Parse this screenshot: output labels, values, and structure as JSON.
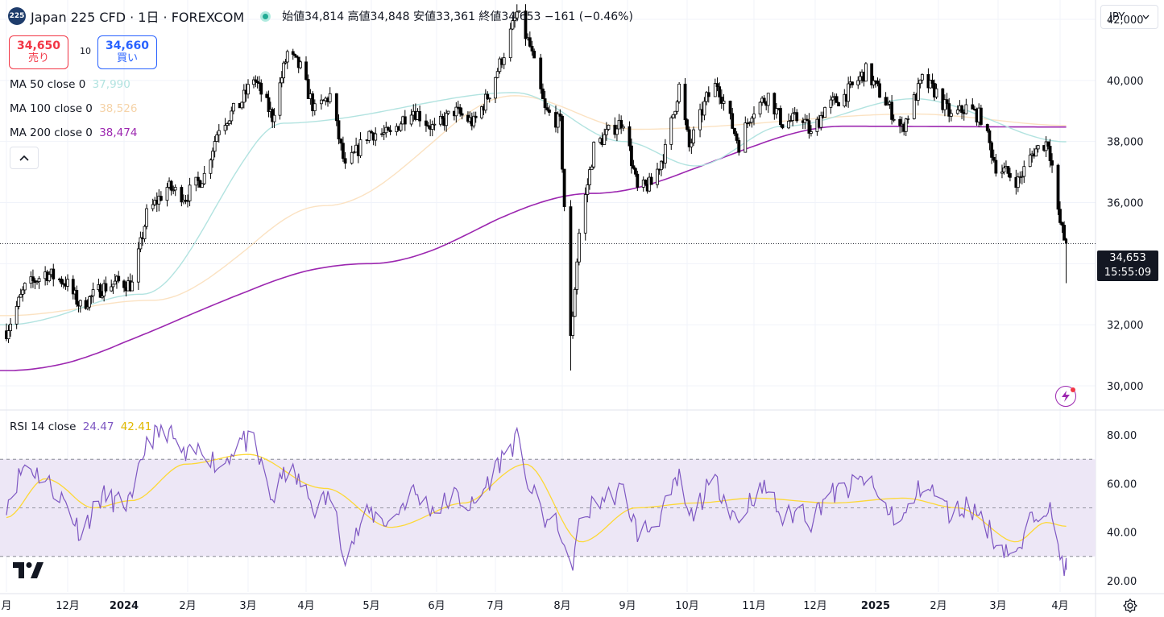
{
  "header": {
    "symbol_badge": "225",
    "title": "Japan 225 CFD · 1日 · FOREXCOM",
    "ohlc": "始値34,814 高値34,848 安値33,361 終値34,653 −161 (−0.46%)"
  },
  "trade": {
    "sell_price": "34,650",
    "sell_label": "売り",
    "spread": "10",
    "buy_price": "34,660",
    "buy_label": "買い"
  },
  "legend": {
    "ma50_label": "MA 50 close 0",
    "ma50_value": "37,990",
    "ma100_label": "MA 100 close 0",
    "ma100_value": "38,526",
    "ma200_label": "MA 200 close 0",
    "ma200_value": "38,474",
    "collapse_icon": "chevron-up-icon"
  },
  "rsi_legend": {
    "label": "RSI 14 close",
    "rsi_value": "24.47",
    "ma_value": "42.41"
  },
  "currency": "JPY",
  "last_price": {
    "price": "34,653",
    "countdown": "15:55:09"
  },
  "colors": {
    "candle_up": "#ffffff",
    "candle_down": "#000000",
    "ma50": "#b2e3e0",
    "ma100": "#fbe2c2",
    "ma200": "#9c27b0",
    "rsi": "#7e57c2",
    "rsi_ma": "#fdd835",
    "rsi_band": "#ede7f6"
  },
  "chart_data": [
    {
      "type": "candlestick",
      "title": "Japan 225 CFD · 1日 · FOREXCOM",
      "y_ticks": [
        "42,000",
        "40,000",
        "38,000",
        "36,000",
        "34,000",
        "32,000",
        "30,000"
      ],
      "ylim": [
        29300,
        42700
      ],
      "x_ticks": [
        "月",
        "12月",
        "2024",
        "2月",
        "3月",
        "4月",
        "5月",
        "6月",
        "7月",
        "8月",
        "9月",
        "10月",
        "11月",
        "12月",
        "2025",
        "2月",
        "3月",
        "4月"
      ],
      "close_path": [
        [
          "2023-11-01",
          31800
        ],
        [
          "2023-11-10",
          33200
        ],
        [
          "2023-11-20",
          33700
        ],
        [
          "2023-11-30",
          33400
        ],
        [
          "2023-12-08",
          32600
        ],
        [
          "2023-12-20",
          33200
        ],
        [
          "2023-12-29",
          33400
        ],
        [
          "2024-01-05",
          33300
        ],
        [
          "2024-01-12",
          35600
        ],
        [
          "2024-01-22",
          36500
        ],
        [
          "2024-01-31",
          36200
        ],
        [
          "2024-02-09",
          36900
        ],
        [
          "2024-02-16",
          38500
        ],
        [
          "2024-02-26",
          39200
        ],
        [
          "2024-03-04",
          40100
        ],
        [
          "2024-03-14",
          38800
        ],
        [
          "2024-03-22",
          40900
        ],
        [
          "2024-03-29",
          40400
        ],
        [
          "2024-04-05",
          39000
        ],
        [
          "2024-04-12",
          39500
        ],
        [
          "2024-04-19",
          37100
        ],
        [
          "2024-04-30",
          38300
        ],
        [
          "2024-05-10",
          38200
        ],
        [
          "2024-05-20",
          39100
        ],
        [
          "2024-05-31",
          38400
        ],
        [
          "2024-06-10",
          39000
        ],
        [
          "2024-06-20",
          38600
        ],
        [
          "2024-06-28",
          39600
        ],
        [
          "2024-07-05",
          40900
        ],
        [
          "2024-07-11",
          42200
        ],
        [
          "2024-07-17",
          41100
        ],
        [
          "2024-07-24",
          39000
        ],
        [
          "2024-07-31",
          38600
        ],
        [
          "2024-08-02",
          35900
        ],
        [
          "2024-08-05",
          31500
        ],
        [
          "2024-08-09",
          35000
        ],
        [
          "2024-08-16",
          37800
        ],
        [
          "2024-08-23",
          38300
        ],
        [
          "2024-08-30",
          38700
        ],
        [
          "2024-09-06",
          36400
        ],
        [
          "2024-09-13",
          36600
        ],
        [
          "2024-09-20",
          37700
        ],
        [
          "2024-09-27",
          39800
        ],
        [
          "2024-10-02",
          37800
        ],
        [
          "2024-10-10",
          39400
        ],
        [
          "2024-10-15",
          39900
        ],
        [
          "2024-10-25",
          37900
        ],
        [
          "2024-10-31",
          39000
        ],
        [
          "2024-11-08",
          39500
        ],
        [
          "2024-11-15",
          38600
        ],
        [
          "2024-11-25",
          38800
        ],
        [
          "2024-11-29",
          38200
        ],
        [
          "2024-12-06",
          39100
        ],
        [
          "2024-12-16",
          39500
        ],
        [
          "2024-12-27",
          40300
        ],
        [
          "2025-01-06",
          39300
        ],
        [
          "2025-01-14",
          38400
        ],
        [
          "2025-01-24",
          40000
        ],
        [
          "2025-01-31",
          39600
        ],
        [
          "2025-02-07",
          38800
        ],
        [
          "2025-02-14",
          39100
        ],
        [
          "2025-02-21",
          38800
        ],
        [
          "2025-02-28",
          37200
        ],
        [
          "2025-03-07",
          36900
        ],
        [
          "2025-03-11",
          36700
        ],
        [
          "2025-03-19",
          37700
        ],
        [
          "2025-03-26",
          38000
        ],
        [
          "2025-03-28",
          37200
        ],
        [
          "2025-03-31",
          35600
        ],
        [
          "2025-04-03",
          34814
        ],
        [
          "2025-04-04",
          34653
        ]
      ],
      "ma200_path": [
        [
          "2023-11-01",
          30500
        ],
        [
          "2024-04-30",
          34000
        ],
        [
          "2024-08-15",
          36300
        ],
        [
          "2024-12-15",
          38500
        ],
        [
          "2025-04-04",
          38474
        ]
      ],
      "ma100_path": [
        [
          "2023-11-01",
          32300
        ],
        [
          "2024-01-15",
          32800
        ],
        [
          "2024-04-10",
          35900
        ],
        [
          "2024-07-10",
          39500
        ],
        [
          "2024-09-05",
          38400
        ],
        [
          "2025-01-20",
          38900
        ],
        [
          "2025-04-04",
          38526
        ]
      ],
      "ma50_path": [
        [
          "2023-11-01",
          32000
        ],
        [
          "2024-01-10",
          33000
        ],
        [
          "2024-03-20",
          38600
        ],
        [
          "2024-07-10",
          39600
        ],
        [
          "2024-08-30",
          38000
        ],
        [
          "2024-10-05",
          37200
        ],
        [
          "2024-11-15",
          38500
        ],
        [
          "2025-01-20",
          39400
        ],
        [
          "2025-04-04",
          37990
        ]
      ],
      "last": {
        "open": 34814,
        "high": 34848,
        "low": 33361,
        "close": 34653
      }
    },
    {
      "type": "line",
      "title": "RSI 14 close",
      "y_ticks": [
        "80.00",
        "60.00",
        "40.00",
        "20.00"
      ],
      "ylim": [
        14,
        86
      ],
      "bands": [
        30,
        50,
        70
      ],
      "rsi_path": [
        [
          "2023-11-01",
          52
        ],
        [
          "2023-11-10",
          68
        ],
        [
          "2023-11-20",
          62
        ],
        [
          "2023-11-30",
          52
        ],
        [
          "2023-12-08",
          40
        ],
        [
          "2023-12-20",
          55
        ],
        [
          "2023-12-29",
          52
        ],
        [
          "2024-01-05",
          52
        ],
        [
          "2024-01-12",
          78
        ],
        [
          "2024-01-22",
          82
        ],
        [
          "2024-01-31",
          70
        ],
        [
          "2024-02-09",
          75
        ],
        [
          "2024-02-16",
          66
        ],
        [
          "2024-02-26",
          78
        ],
        [
          "2024-03-04",
          76
        ],
        [
          "2024-03-14",
          53
        ],
        [
          "2024-03-22",
          66
        ],
        [
          "2024-03-29",
          60
        ],
        [
          "2024-04-05",
          50
        ],
        [
          "2024-04-12",
          55
        ],
        [
          "2024-04-19",
          31
        ],
        [
          "2024-04-30",
          48
        ],
        [
          "2024-05-10",
          44
        ],
        [
          "2024-05-20",
          57
        ],
        [
          "2024-05-31",
          49
        ],
        [
          "2024-06-10",
          55
        ],
        [
          "2024-06-20",
          50
        ],
        [
          "2024-06-28",
          62
        ],
        [
          "2024-07-05",
          72
        ],
        [
          "2024-07-11",
          78
        ],
        [
          "2024-07-17",
          58
        ],
        [
          "2024-07-24",
          45
        ],
        [
          "2024-07-31",
          42
        ],
        [
          "2024-08-02",
          30
        ],
        [
          "2024-08-05",
          24
        ],
        [
          "2024-08-09",
          42
        ],
        [
          "2024-08-16",
          52
        ],
        [
          "2024-08-23",
          55
        ],
        [
          "2024-08-30",
          57
        ],
        [
          "2024-09-06",
          40
        ],
        [
          "2024-09-13",
          42
        ],
        [
          "2024-09-20",
          50
        ],
        [
          "2024-09-27",
          62
        ],
        [
          "2024-10-02",
          45
        ],
        [
          "2024-10-10",
          57
        ],
        [
          "2024-10-15",
          60
        ],
        [
          "2024-10-25",
          44
        ],
        [
          "2024-10-31",
          55
        ],
        [
          "2024-11-08",
          58
        ],
        [
          "2024-11-15",
          45
        ],
        [
          "2024-11-25",
          50
        ],
        [
          "2024-11-29",
          44
        ],
        [
          "2024-12-06",
          55
        ],
        [
          "2024-12-16",
          57
        ],
        [
          "2024-12-27",
          62
        ],
        [
          "2025-01-06",
          50
        ],
        [
          "2025-01-14",
          44
        ],
        [
          "2025-01-24",
          60
        ],
        [
          "2025-01-31",
          55
        ],
        [
          "2025-02-07",
          47
        ],
        [
          "2025-02-14",
          51
        ],
        [
          "2025-02-21",
          47
        ],
        [
          "2025-02-28",
          36
        ],
        [
          "2025-03-07",
          32
        ],
        [
          "2025-03-11",
          30
        ],
        [
          "2025-03-19",
          48
        ],
        [
          "2025-03-26",
          52
        ],
        [
          "2025-03-28",
          44
        ],
        [
          "2025-03-31",
          33
        ],
        [
          "2025-04-04",
          24.47
        ]
      ],
      "rsi_ma_path": [
        [
          "2023-11-01",
          46
        ],
        [
          "2023-11-20",
          62
        ],
        [
          "2023-12-15",
          50
        ],
        [
          "2024-01-05",
          53
        ],
        [
          "2024-01-31",
          68
        ],
        [
          "2024-03-01",
          72
        ],
        [
          "2024-04-10",
          58
        ],
        [
          "2024-05-10",
          42
        ],
        [
          "2024-06-15",
          52
        ],
        [
          "2024-07-15",
          68
        ],
        [
          "2024-08-10",
          36
        ],
        [
          "2024-09-05",
          50
        ],
        [
          "2024-10-05",
          52
        ],
        [
          "2024-11-01",
          54
        ],
        [
          "2024-12-10",
          52
        ],
        [
          "2025-01-15",
          54
        ],
        [
          "2025-02-10",
          50
        ],
        [
          "2025-03-10",
          36
        ],
        [
          "2025-03-25",
          44
        ],
        [
          "2025-04-04",
          42.41
        ]
      ]
    }
  ]
}
